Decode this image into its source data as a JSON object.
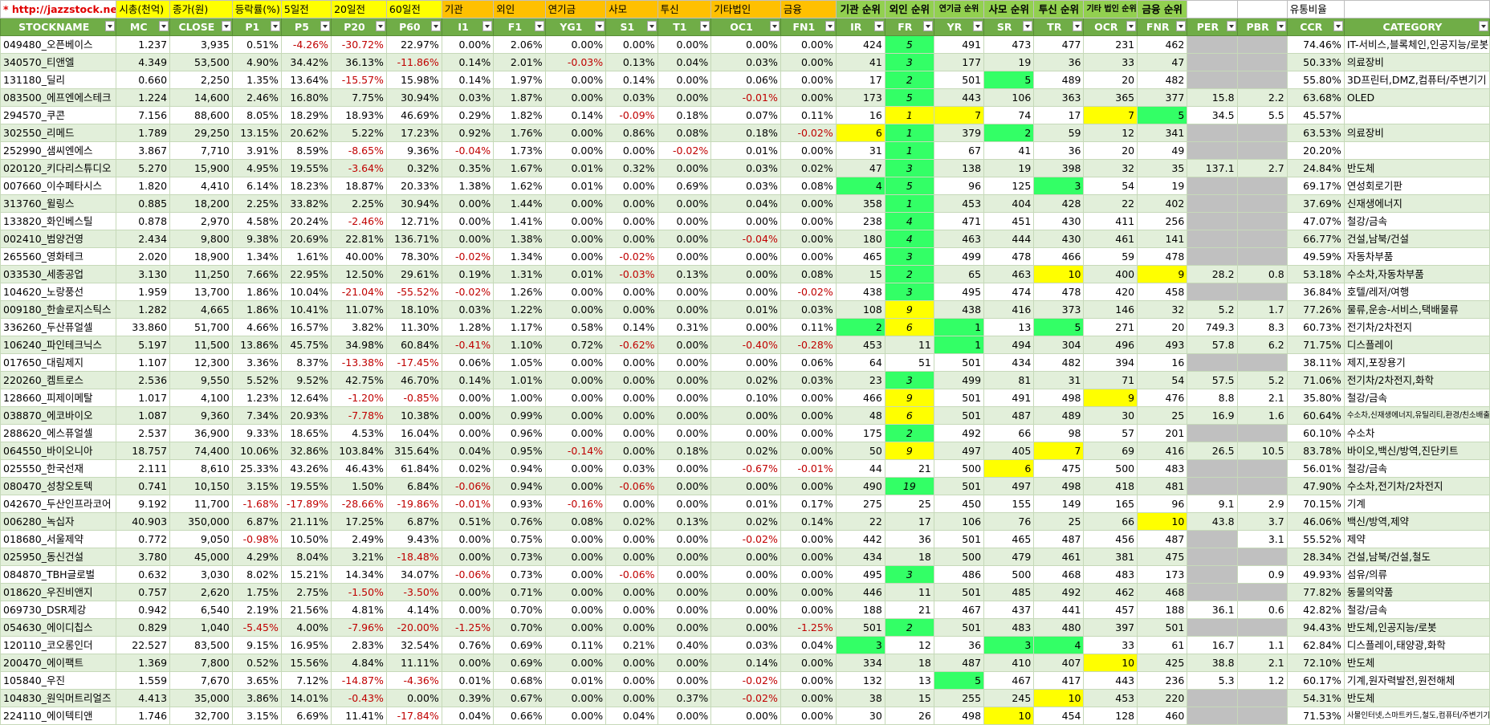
{
  "top_labels": [
    "* http://jazzstock.net/ 활용",
    "시총(천억)",
    "종가(원)",
    "등락률(%)",
    "5일전",
    "20일전",
    "60일전",
    "기관",
    "외인",
    "연기금",
    "사모",
    "투신",
    "기타법인",
    "금융",
    "기관 순위",
    "외인 순위",
    "연기금 순위",
    "사모 순위",
    "투신 순위",
    "기타 법인 순위",
    "금융 순위",
    "",
    "",
    "유통비율",
    ""
  ],
  "headers": [
    "STOCKNAME",
    "MC",
    "CLOSE",
    "P1",
    "P5",
    "P20",
    "P60",
    "I1",
    "F1",
    "YG1",
    "S1",
    "T1",
    "OC1",
    "FN1",
    "IR",
    "FR",
    "YR",
    "SR",
    "TR",
    "OCR",
    "FNR",
    "PER",
    "PBR",
    "CCR",
    "CATEGORY"
  ],
  "rows": [
    [
      "049480_오픈베이스",
      "1.237",
      "3,935",
      "0.51%",
      "-4.26%",
      "-30.72%",
      "22.97%",
      "0.00%",
      "2.06%",
      "0.00%",
      "0.00%",
      "0.00%",
      "0.00%",
      "0.00%",
      "424",
      "5",
      "491",
      "473",
      "477",
      "231",
      "462",
      "",
      "",
      "74.46%",
      "IT-서비스,블록체인,인공지능/로봇"
    ],
    [
      "340570_티앤엘",
      "4.349",
      "53,500",
      "4.90%",
      "34.42%",
      "36.13%",
      "-11.86%",
      "0.14%",
      "2.01%",
      "-0.03%",
      "0.13%",
      "0.04%",
      "0.03%",
      "0.00%",
      "41",
      "3",
      "177",
      "19",
      "36",
      "33",
      "47",
      "",
      "",
      "50.33%",
      "의료장비"
    ],
    [
      "131180_딜리",
      "0.660",
      "2,250",
      "1.35%",
      "13.64%",
      "-15.57%",
      "15.98%",
      "0.14%",
      "1.97%",
      "0.00%",
      "0.14%",
      "0.00%",
      "0.06%",
      "0.00%",
      "17",
      "2",
      "501",
      "5",
      "489",
      "20",
      "482",
      "",
      "",
      "55.80%",
      "3D프린터,DMZ,컴퓨터/주변기기"
    ],
    [
      "083500_에프엔에스테크",
      "1.224",
      "14,600",
      "2.46%",
      "16.80%",
      "7.75%",
      "30.94%",
      "0.03%",
      "1.87%",
      "0.00%",
      "0.03%",
      "0.00%",
      "-0.01%",
      "0.00%",
      "173",
      "5",
      "443",
      "106",
      "363",
      "365",
      "377",
      "15.8",
      "2.2",
      "63.68%",
      "OLED"
    ],
    [
      "294570_쿠콘",
      "7.156",
      "88,600",
      "8.05%",
      "18.29%",
      "18.93%",
      "46.69%",
      "0.29%",
      "1.82%",
      "0.14%",
      "-0.09%",
      "0.18%",
      "0.07%",
      "0.11%",
      "16",
      "1",
      "7",
      "74",
      "17",
      "7",
      "5",
      "34.5",
      "5.5",
      "45.57%",
      ""
    ],
    [
      "302550_리메드",
      "1.789",
      "29,250",
      "13.15%",
      "20.62%",
      "5.22%",
      "17.23%",
      "0.92%",
      "1.76%",
      "0.00%",
      "0.86%",
      "0.08%",
      "0.18%",
      "-0.02%",
      "6",
      "1",
      "379",
      "2",
      "59",
      "12",
      "341",
      "",
      "",
      "63.53%",
      "의료장비"
    ],
    [
      "252990_샘씨엔에스",
      "3.867",
      "7,710",
      "3.91%",
      "8.59%",
      "-8.65%",
      "9.36%",
      "-0.04%",
      "1.73%",
      "0.00%",
      "0.00%",
      "-0.02%",
      "0.01%",
      "0.00%",
      "31",
      "1",
      "67",
      "41",
      "36",
      "20",
      "49",
      "",
      "",
      "20.20%",
      ""
    ],
    [
      "020120_키다리스튜디오",
      "5.270",
      "15,900",
      "4.95%",
      "19.55%",
      "-3.64%",
      "0.32%",
      "0.35%",
      "1.67%",
      "0.01%",
      "0.32%",
      "0.00%",
      "0.03%",
      "0.02%",
      "47",
      "3",
      "138",
      "19",
      "398",
      "32",
      "35",
      "137.1",
      "2.7",
      "24.84%",
      "반도체"
    ],
    [
      "007660_이수페타시스",
      "1.820",
      "4,410",
      "6.14%",
      "18.23%",
      "18.87%",
      "20.33%",
      "1.38%",
      "1.62%",
      "0.01%",
      "0.00%",
      "0.69%",
      "0.03%",
      "0.08%",
      "4",
      "5",
      "96",
      "125",
      "3",
      "54",
      "19",
      "",
      "",
      "69.17%",
      "연성회로기판"
    ],
    [
      "313760_윌링스",
      "0.885",
      "18,200",
      "2.25%",
      "33.82%",
      "2.25%",
      "30.94%",
      "0.00%",
      "1.44%",
      "0.00%",
      "0.00%",
      "0.00%",
      "0.04%",
      "0.00%",
      "358",
      "1",
      "453",
      "404",
      "428",
      "22",
      "402",
      "",
      "",
      "37.69%",
      "신재생에너지"
    ],
    [
      "133820_화인베스틸",
      "0.878",
      "2,970",
      "4.58%",
      "20.24%",
      "-2.46%",
      "12.71%",
      "0.00%",
      "1.41%",
      "0.00%",
      "0.00%",
      "0.00%",
      "0.00%",
      "0.00%",
      "238",
      "4",
      "471",
      "451",
      "430",
      "411",
      "256",
      "",
      "",
      "47.07%",
      "철강/금속"
    ],
    [
      "002410_범양건영",
      "2.434",
      "9,800",
      "9.38%",
      "20.69%",
      "22.81%",
      "136.71%",
      "0.00%",
      "1.38%",
      "0.00%",
      "0.00%",
      "0.00%",
      "-0.04%",
      "0.00%",
      "180",
      "4",
      "463",
      "444",
      "430",
      "461",
      "141",
      "",
      "",
      "66.77%",
      "건설,남북/건설"
    ],
    [
      "265560_영화테크",
      "2.020",
      "18,900",
      "1.34%",
      "1.61%",
      "40.00%",
      "78.30%",
      "-0.02%",
      "1.34%",
      "0.00%",
      "-0.02%",
      "0.00%",
      "0.00%",
      "0.00%",
      "465",
      "3",
      "499",
      "478",
      "466",
      "59",
      "478",
      "",
      "",
      "49.59%",
      "자동차부품"
    ],
    [
      "033530_세종공업",
      "3.130",
      "11,250",
      "7.66%",
      "22.95%",
      "12.50%",
      "29.61%",
      "0.19%",
      "1.31%",
      "0.01%",
      "-0.03%",
      "0.13%",
      "0.00%",
      "0.08%",
      "15",
      "2",
      "65",
      "463",
      "10",
      "400",
      "9",
      "28.2",
      "0.8",
      "53.18%",
      "수소차,자동차부품"
    ],
    [
      "104620_노랑풍선",
      "1.959",
      "13,700",
      "1.86%",
      "10.04%",
      "-21.04%",
      "-55.52%",
      "-0.02%",
      "1.26%",
      "0.00%",
      "0.00%",
      "0.00%",
      "0.00%",
      "-0.02%",
      "438",
      "3",
      "495",
      "474",
      "478",
      "420",
      "458",
      "",
      "",
      "36.84%",
      "호텔/레저/여행"
    ],
    [
      "009180_한솔로지스틱스",
      "1.282",
      "4,665",
      "1.86%",
      "10.41%",
      "11.07%",
      "18.10%",
      "0.03%",
      "1.22%",
      "0.00%",
      "0.00%",
      "0.00%",
      "0.01%",
      "0.03%",
      "108",
      "9",
      "438",
      "416",
      "373",
      "146",
      "32",
      "5.2",
      "1.7",
      "77.26%",
      "물류,운송-서비스,택배물류"
    ],
    [
      "336260_두산퓨얼셀",
      "33.860",
      "51,700",
      "4.66%",
      "16.57%",
      "3.82%",
      "11.30%",
      "1.28%",
      "1.17%",
      "0.58%",
      "0.14%",
      "0.31%",
      "0.00%",
      "0.11%",
      "2",
      "6",
      "1",
      "13",
      "5",
      "271",
      "20",
      "749.3",
      "8.3",
      "60.73%",
      "전기차/2차전지"
    ],
    [
      "106240_파인테크닉스",
      "5.197",
      "11,500",
      "13.86%",
      "45.75%",
      "34.98%",
      "60.84%",
      "-0.41%",
      "1.10%",
      "0.72%",
      "-0.62%",
      "0.00%",
      "-0.40%",
      "-0.28%",
      "453",
      "11",
      "1",
      "494",
      "304",
      "496",
      "493",
      "57.8",
      "6.2",
      "71.75%",
      "디스플레이"
    ],
    [
      "017650_대림제지",
      "1.107",
      "12,300",
      "3.36%",
      "8.37%",
      "-13.38%",
      "-17.45%",
      "0.06%",
      "1.05%",
      "0.00%",
      "0.00%",
      "0.00%",
      "0.00%",
      "0.06%",
      "64",
      "51",
      "501",
      "434",
      "482",
      "394",
      "16",
      "",
      "",
      "38.11%",
      "제지,포장용기"
    ],
    [
      "220260_켐트로스",
      "2.536",
      "9,550",
      "5.52%",
      "9.52%",
      "42.75%",
      "46.70%",
      "0.14%",
      "1.01%",
      "0.00%",
      "0.00%",
      "0.00%",
      "0.02%",
      "0.03%",
      "23",
      "3",
      "499",
      "81",
      "31",
      "71",
      "54",
      "57.5",
      "5.2",
      "71.06%",
      "전기차/2차전지,화학"
    ],
    [
      "128660_피제이메탈",
      "1.017",
      "4,100",
      "1.23%",
      "12.64%",
      "-1.20%",
      "-0.85%",
      "0.00%",
      "1.00%",
      "0.00%",
      "0.00%",
      "0.00%",
      "0.10%",
      "0.00%",
      "466",
      "9",
      "501",
      "491",
      "498",
      "9",
      "476",
      "8.8",
      "2.1",
      "35.80%",
      "철강/금속"
    ],
    [
      "038870_에코바이오",
      "1.087",
      "9,360",
      "7.34%",
      "20.93%",
      "-7.78%",
      "10.38%",
      "0.00%",
      "0.99%",
      "0.00%",
      "0.00%",
      "0.00%",
      "0.00%",
      "0.00%",
      "48",
      "6",
      "501",
      "487",
      "489",
      "30",
      "25",
      "16.9",
      "1.6",
      "60.64%",
      "수소차,신재생에너지,유틸리티,환경/친소배출권"
    ],
    [
      "288620_에스퓨얼셀",
      "2.537",
      "36,900",
      "9.33%",
      "18.65%",
      "4.53%",
      "16.04%",
      "0.00%",
      "0.96%",
      "0.00%",
      "0.00%",
      "0.00%",
      "0.00%",
      "0.00%",
      "175",
      "2",
      "492",
      "66",
      "98",
      "57",
      "201",
      "",
      "",
      "60.10%",
      "수소차"
    ],
    [
      "064550_바이오니아",
      "18.757",
      "74,400",
      "10.06%",
      "32.86%",
      "103.84%",
      "315.64%",
      "0.04%",
      "0.95%",
      "-0.14%",
      "0.00%",
      "0.18%",
      "0.02%",
      "0.00%",
      "50",
      "9",
      "497",
      "405",
      "7",
      "69",
      "416",
      "26.5",
      "10.5",
      "83.78%",
      "바이오,백신/방역,진단키트"
    ],
    [
      "025550_한국선재",
      "2.111",
      "8,610",
      "25.33%",
      "43.26%",
      "46.43%",
      "61.84%",
      "0.02%",
      "0.94%",
      "0.00%",
      "0.03%",
      "0.00%",
      "-0.67%",
      "-0.01%",
      "44",
      "21",
      "500",
      "6",
      "475",
      "500",
      "483",
      "",
      "",
      "56.01%",
      "철강/금속"
    ],
    [
      "080470_성창오토텍",
      "0.741",
      "10,150",
      "3.15%",
      "19.55%",
      "1.50%",
      "6.84%",
      "-0.06%",
      "0.94%",
      "0.00%",
      "-0.06%",
      "0.00%",
      "0.00%",
      "0.00%",
      "490",
      "19",
      "501",
      "497",
      "498",
      "418",
      "481",
      "",
      "",
      "47.90%",
      "수소차,전기차/2차전지"
    ],
    [
      "042670_두산인프라코어",
      "9.192",
      "11,700",
      "-1.68%",
      "-17.89%",
      "-28.66%",
      "-19.86%",
      "-0.01%",
      "0.93%",
      "-0.16%",
      "0.00%",
      "0.00%",
      "0.01%",
      "0.17%",
      "275",
      "25",
      "450",
      "155",
      "149",
      "165",
      "96",
      "9.1",
      "2.9",
      "70.15%",
      "기계"
    ],
    [
      "006280_녹십자",
      "40.903",
      "350,000",
      "6.87%",
      "21.11%",
      "17.25%",
      "6.87%",
      "0.51%",
      "0.76%",
      "0.08%",
      "0.02%",
      "0.13%",
      "0.02%",
      "0.14%",
      "22",
      "17",
      "106",
      "76",
      "25",
      "66",
      "10",
      "43.8",
      "3.7",
      "46.06%",
      "백신/방역,제약"
    ],
    [
      "018680_서울제약",
      "0.772",
      "9,050",
      "-0.98%",
      "10.50%",
      "2.49%",
      "9.43%",
      "0.00%",
      "0.75%",
      "0.00%",
      "0.00%",
      "0.00%",
      "-0.02%",
      "0.00%",
      "442",
      "36",
      "501",
      "465",
      "487",
      "456",
      "487",
      "",
      "3.1",
      "55.52%",
      "제약"
    ],
    [
      "025950_동신건설",
      "3.780",
      "45,000",
      "4.29%",
      "8.04%",
      "3.21%",
      "-18.48%",
      "0.00%",
      "0.73%",
      "0.00%",
      "0.00%",
      "0.00%",
      "0.00%",
      "0.00%",
      "434",
      "18",
      "500",
      "479",
      "461",
      "381",
      "475",
      "",
      "",
      "28.34%",
      "건설,남북/건설,철도"
    ],
    [
      "084870_TBH글로벌",
      "0.632",
      "3,030",
      "8.02%",
      "15.21%",
      "14.34%",
      "34.07%",
      "-0.06%",
      "0.73%",
      "0.00%",
      "-0.06%",
      "0.00%",
      "0.00%",
      "0.00%",
      "495",
      "3",
      "486",
      "500",
      "468",
      "483",
      "173",
      "",
      "0.9",
      "49.93%",
      "섬유/의류"
    ],
    [
      "018620_우진비앤지",
      "0.757",
      "2,620",
      "1.75%",
      "2.75%",
      "-1.50%",
      "-3.50%",
      "0.00%",
      "0.71%",
      "0.00%",
      "0.00%",
      "0.00%",
      "0.00%",
      "0.00%",
      "446",
      "11",
      "501",
      "485",
      "492",
      "462",
      "468",
      "",
      "",
      "77.82%",
      "동물의약품"
    ],
    [
      "069730_DSR제강",
      "0.942",
      "6,540",
      "2.19%",
      "21.56%",
      "4.81%",
      "4.14%",
      "0.00%",
      "0.70%",
      "0.00%",
      "0.00%",
      "0.00%",
      "0.00%",
      "0.00%",
      "188",
      "21",
      "467",
      "437",
      "441",
      "457",
      "188",
      "36.1",
      "0.6",
      "42.82%",
      "철강/금속"
    ],
    [
      "054630_에이디칩스",
      "0.829",
      "1,040",
      "-5.45%",
      "4.00%",
      "-7.96%",
      "-20.00%",
      "-1.25%",
      "0.70%",
      "0.00%",
      "0.00%",
      "0.00%",
      "0.00%",
      "-1.25%",
      "501",
      "2",
      "501",
      "483",
      "480",
      "397",
      "501",
      "",
      "",
      "94.43%",
      "반도체,인공지능/로봇"
    ],
    [
      "120110_코오롱인더",
      "22.527",
      "83,500",
      "9.15%",
      "16.95%",
      "2.83%",
      "32.54%",
      "0.76%",
      "0.69%",
      "0.11%",
      "0.21%",
      "0.40%",
      "0.03%",
      "0.04%",
      "3",
      "12",
      "36",
      "3",
      "4",
      "33",
      "61",
      "16.7",
      "1.1",
      "62.84%",
      "디스플레이,태양광,화학"
    ],
    [
      "200470_에이팩트",
      "1.369",
      "7,800",
      "0.52%",
      "15.56%",
      "4.84%",
      "11.11%",
      "0.00%",
      "0.69%",
      "0.00%",
      "0.00%",
      "0.00%",
      "0.14%",
      "0.00%",
      "334",
      "18",
      "487",
      "410",
      "407",
      "10",
      "425",
      "38.8",
      "2.1",
      "72.10%",
      "반도체"
    ],
    [
      "105840_우진",
      "1.559",
      "7,670",
      "3.65%",
      "7.12%",
      "-14.87%",
      "-4.36%",
      "0.01%",
      "0.68%",
      "0.01%",
      "0.00%",
      "0.00%",
      "-0.02%",
      "0.00%",
      "132",
      "13",
      "5",
      "467",
      "417",
      "443",
      "236",
      "5.3",
      "1.2",
      "60.17%",
      "기계,원자력발전,원전해체"
    ],
    [
      "104830_원익머트리얼즈",
      "4.413",
      "35,000",
      "3.86%",
      "14.01%",
      "-0.43%",
      "0.00%",
      "0.39%",
      "0.67%",
      "0.00%",
      "0.00%",
      "0.37%",
      "-0.02%",
      "0.00%",
      "38",
      "15",
      "255",
      "245",
      "10",
      "453",
      "220",
      "",
      "",
      "54.31%",
      "반도체"
    ],
    [
      "224110_에이텍티앤",
      "1.746",
      "32,700",
      "3.15%",
      "6.69%",
      "11.41%",
      "-17.84%",
      "0.04%",
      "0.66%",
      "0.00%",
      "0.04%",
      "0.00%",
      "0.00%",
      "0.00%",
      "30",
      "26",
      "498",
      "10",
      "454",
      "128",
      "460",
      "",
      "",
      "71.53%",
      "사물인터넷,스마트카드,철도,컴퓨터/주변기기"
    ]
  ],
  "highlights": {
    "yellow": [
      [
        4,
        "FR"
      ],
      [
        4,
        "YR"
      ],
      [
        4,
        "OCR"
      ],
      [
        5,
        "IR"
      ],
      [
        13,
        "TR"
      ],
      [
        13,
        "FNR"
      ],
      [
        15,
        "FR"
      ],
      [
        16,
        "FR"
      ],
      [
        20,
        "FR"
      ],
      [
        20,
        "OCR"
      ],
      [
        21,
        "FR"
      ],
      [
        23,
        "FR"
      ],
      [
        23,
        "TR"
      ],
      [
        24,
        "SR"
      ],
      [
        27,
        "FNR"
      ],
      [
        35,
        "OCR"
      ],
      [
        37,
        "TR"
      ],
      [
        38,
        "SR"
      ]
    ],
    "green": [
      [
        0,
        "FR"
      ],
      [
        1,
        "FR"
      ],
      [
        2,
        "FR"
      ],
      [
        2,
        "SR"
      ],
      [
        3,
        "FR"
      ],
      [
        4,
        "FNR"
      ],
      [
        5,
        "FR"
      ],
      [
        5,
        "SR"
      ],
      [
        6,
        "FR"
      ],
      [
        7,
        "FR"
      ],
      [
        8,
        "IR"
      ],
      [
        8,
        "FR"
      ],
      [
        8,
        "TR"
      ],
      [
        9,
        "FR"
      ],
      [
        10,
        "FR"
      ],
      [
        11,
        "FR"
      ],
      [
        12,
        "FR"
      ],
      [
        13,
        "FR"
      ],
      [
        14,
        "FR"
      ],
      [
        16,
        "IR"
      ],
      [
        16,
        "YR"
      ],
      [
        16,
        "TR"
      ],
      [
        17,
        "YR"
      ],
      [
        19,
        "FR"
      ],
      [
        22,
        "FR"
      ],
      [
        25,
        "FR"
      ],
      [
        30,
        "FR"
      ],
      [
        33,
        "FR"
      ],
      [
        34,
        "IR"
      ],
      [
        34,
        "SR"
      ],
      [
        34,
        "TR"
      ],
      [
        36,
        "YR"
      ]
    ]
  },
  "colors": {
    "header_green": "#70ad47",
    "band_green": "#e2efda",
    "highlight_yellow": "#ffff00",
    "highlight_green": "#33ff66",
    "negative_red": "#c00000",
    "url_red": "#e00000"
  }
}
